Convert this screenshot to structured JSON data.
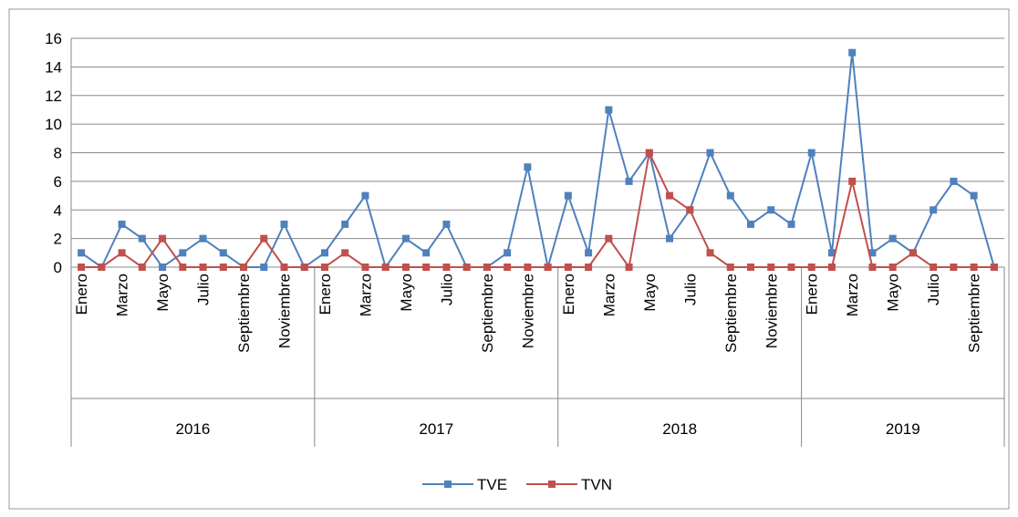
{
  "chart_data": {
    "type": "line",
    "groups": [
      {
        "name": "2016",
        "categories": [
          "Enero",
          null,
          "Marzo",
          null,
          "Mayo",
          null,
          "Julio",
          null,
          "Septiembre",
          null,
          "Noviembre",
          null
        ]
      },
      {
        "name": "2017",
        "categories": [
          "Enero",
          null,
          "Marzo",
          null,
          "Mayo",
          null,
          "Julio",
          null,
          "Septiembre",
          null,
          "Noviembre",
          null
        ]
      },
      {
        "name": "2018",
        "categories": [
          "Enero",
          null,
          "Marzo",
          null,
          "Mayo",
          null,
          "Julio",
          null,
          "Septiembre",
          null,
          "Noviembre",
          null
        ]
      },
      {
        "name": "2019",
        "categories": [
          "Enero",
          null,
          "Marzo",
          null,
          "Mayo",
          null,
          "Julio",
          null,
          "Septiembre",
          null
        ]
      }
    ],
    "series": [
      {
        "name": "TVE",
        "color": "#4f81bd",
        "values": [
          1,
          0,
          3,
          2,
          0,
          1,
          2,
          1,
          0,
          0,
          3,
          0,
          1,
          3,
          5,
          0,
          2,
          1,
          3,
          0,
          0,
          1,
          7,
          0,
          5,
          1,
          11,
          6,
          8,
          2,
          4,
          8,
          5,
          3,
          4,
          3,
          8,
          1,
          15,
          1,
          2,
          1,
          4,
          6,
          5,
          0
        ]
      },
      {
        "name": "TVN",
        "color": "#c0504d",
        "values": [
          0,
          0,
          1,
          0,
          2,
          0,
          0,
          0,
          0,
          2,
          0,
          0,
          0,
          1,
          0,
          0,
          0,
          0,
          0,
          0,
          0,
          0,
          0,
          0,
          0,
          0,
          2,
          0,
          8,
          5,
          4,
          1,
          0,
          0,
          0,
          0,
          0,
          0,
          6,
          0,
          0,
          1,
          0,
          0,
          0,
          0
        ]
      }
    ],
    "ylim": [
      0,
      16
    ],
    "yticks": [
      0,
      2,
      4,
      6,
      8,
      10,
      12,
      14,
      16
    ],
    "grid": true,
    "legend": "bottom"
  }
}
